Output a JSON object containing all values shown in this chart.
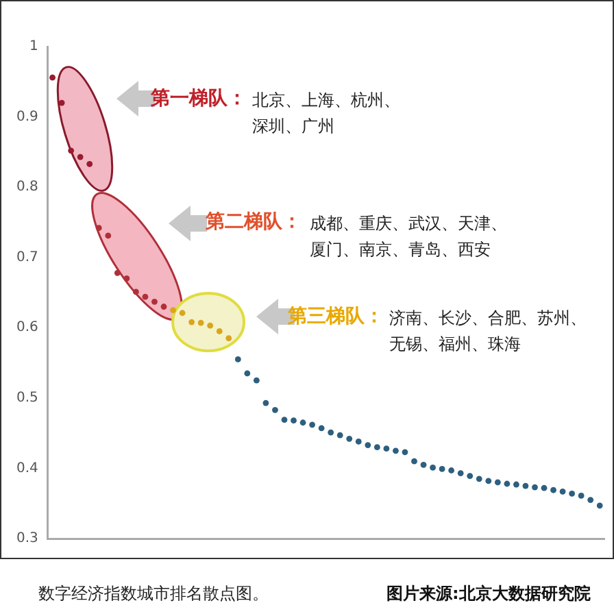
{
  "chart_data": {
    "type": "scatter",
    "categories": [
      null,
      null,
      null,
      null,
      null,
      null,
      null,
      null,
      null,
      null,
      null,
      null,
      null,
      null,
      null,
      null,
      null,
      null,
      null,
      null,
      null,
      null,
      null,
      null,
      null,
      null,
      null,
      null,
      null,
      null,
      null,
      null,
      null,
      null,
      null,
      null,
      null,
      null,
      null,
      null,
      null,
      null,
      null,
      null,
      null,
      null,
      null,
      null,
      null,
      null,
      null,
      null,
      null,
      null,
      null,
      null,
      null,
      null,
      null,
      null
    ],
    "values": [
      0.956,
      0.92,
      0.852,
      0.843,
      0.833,
      0.742,
      0.731,
      0.678,
      0.67,
      0.651,
      0.644,
      0.637,
      0.63,
      0.625,
      0.621,
      0.608,
      0.607,
      0.603,
      0.595,
      0.585,
      0.555,
      0.535,
      0.525,
      0.493,
      0.483,
      0.469,
      0.468,
      0.465,
      0.462,
      0.457,
      0.451,
      0.447,
      0.442,
      0.438,
      0.433,
      0.43,
      0.428,
      0.425,
      0.423,
      0.41,
      0.405,
      0.401,
      0.399,
      0.397,
      0.393,
      0.389,
      0.385,
      0.382,
      0.38,
      0.378,
      0.377,
      0.375,
      0.373,
      0.372,
      0.369,
      0.367,
      0.364,
      0.361,
      0.355,
      0.347
    ],
    "colors": [
      "#9b1b30",
      "#9b1b30",
      "#9b1b30",
      "#9b1b30",
      "#9b1b30",
      "#b0303a",
      "#b0303a",
      "#b0303a",
      "#b0303a",
      "#b0303a",
      "#b0303a",
      "#b0303a",
      "#b0303a",
      "#d9a520",
      "#d9a520",
      "#d9a520",
      "#d9a520",
      "#d9a520",
      "#d9a520",
      "#d9a520",
      "#2d5f7f",
      "#2d5f7f",
      "#2d5f7f",
      "#2d5f7f",
      "#2d5f7f",
      "#2d5f7f",
      "#2d5f7f",
      "#2d5f7f",
      "#2d5f7f",
      "#2d5f7f",
      "#2d5f7f",
      "#2d5f7f",
      "#2d5f7f",
      "#2d5f7f",
      "#2d5f7f",
      "#2d5f7f",
      "#2d5f7f",
      "#2d5f7f",
      "#2d5f7f",
      "#2d5f7f",
      "#2d5f7f",
      "#2d5f7f",
      "#2d5f7f",
      "#2d5f7f",
      "#2d5f7f",
      "#2d5f7f",
      "#2d5f7f",
      "#2d5f7f",
      "#2d5f7f",
      "#2d5f7f",
      "#2d5f7f",
      "#2d5f7f",
      "#2d5f7f",
      "#2d5f7f",
      "#2d5f7f",
      "#2d5f7f",
      "#2d5f7f",
      "#2d5f7f",
      "#2d5f7f",
      "#2d5f7f"
    ],
    "ylim": [
      0.3,
      1
    ],
    "yticks": [
      0.3,
      0.4,
      0.5,
      0.6,
      0.7,
      0.8,
      0.9,
      1
    ],
    "grid": false,
    "tick_labels": "y",
    "marker": "circle",
    "annotations": [
      "第一梯队：",
      "北京、上海、杭州、深圳、广州",
      "第二梯队：",
      "成都、重庆、武汉、天津、厦门、南京、青岛、西安",
      "第三梯队：",
      "济南、长沙、合肥、苏州、无锡、福州、珠海",
      "数字经济指数城市排名散点图。",
      "图片来源:北京大数据研究院"
    ]
  }
}
